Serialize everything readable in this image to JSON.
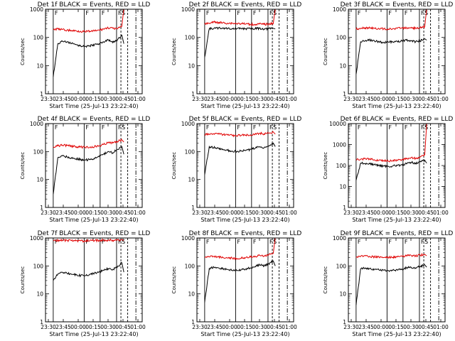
{
  "chart_data": [
    {
      "type": "line",
      "title": "Det 1f BLACK = Events, RED = LLD",
      "xlabel": "Start Time (25-Jul-13 23:22:40)",
      "ylabel": "Counts/sec",
      "xticks": [
        "23:30",
        "23:45",
        "00:00",
        "00:15",
        "00:30",
        "00:45",
        "01:00"
      ],
      "yticks": [
        "1",
        "10",
        "100",
        "1000"
      ],
      "ylim": [
        1,
        1000
      ],
      "yscale": "log",
      "series": [
        {
          "name": "Events",
          "color": "#000000",
          "values": [
            4,
            60,
            72,
            70,
            60,
            55,
            50,
            48,
            50,
            55,
            60,
            70,
            80,
            65,
            80,
            120,
            60
          ]
        },
        {
          "name": "LLD",
          "color": "#e00000",
          "values": [
            190,
            200,
            190,
            180,
            175,
            170,
            165,
            160,
            165,
            170,
            180,
            200,
            220,
            210,
            200,
            250,
            1100
          ]
        }
      ],
      "markers": {
        "solid": [
          "F",
          "F",
          "F",
          "F"
        ],
        "dashdot": [
          "S"
        ]
      }
    },
    {
      "type": "line",
      "title": "Det 2f BLACK = Events, RED = LLD",
      "xlabel": "Start Time (25-Jul-13 23:22:40)",
      "ylabel": "Counts/sec",
      "xticks": [
        "23:30",
        "23:45",
        "00:00",
        "00:15",
        "00:30",
        "00:45",
        "01:00"
      ],
      "yticks": [
        "1",
        "10",
        "100",
        "1000"
      ],
      "ylim": [
        1,
        1000
      ],
      "yscale": "log",
      "series": [
        {
          "name": "Events",
          "color": "#000000",
          "values": [
            20,
            200,
            210,
            215,
            215,
            210,
            205,
            205,
            210,
            205,
            200,
            205,
            210,
            200,
            205,
            210,
            200
          ]
        },
        {
          "name": "LLD",
          "color": "#e00000",
          "values": [
            300,
            320,
            350,
            340,
            330,
            320,
            320,
            310,
            310,
            300,
            290,
            290,
            300,
            290,
            300,
            310,
            1100
          ]
        }
      ],
      "markers": {
        "solid": [
          "F",
          "F",
          "F",
          "F"
        ],
        "dashdot": [
          "S"
        ]
      }
    },
    {
      "type": "line",
      "title": "Det 3f BLACK = Events, RED = LLD",
      "xlabel": "Start Time (25-Jul-13 23:22:40)",
      "ylabel": "Counts/sec",
      "xticks": [
        "23:30",
        "23:45",
        "00:00",
        "00:15",
        "00:30",
        "00:45",
        "01:00"
      ],
      "yticks": [
        "1",
        "10",
        "100",
        "1000"
      ],
      "ylim": [
        1,
        1000
      ],
      "yscale": "log",
      "series": [
        {
          "name": "Events",
          "color": "#000000",
          "values": [
            5,
            70,
            75,
            80,
            75,
            70,
            65,
            68,
            70,
            72,
            75,
            80,
            75,
            70,
            75,
            90,
            80
          ]
        },
        {
          "name": "LLD",
          "color": "#e00000",
          "values": [
            200,
            210,
            220,
            215,
            210,
            205,
            200,
            200,
            205,
            210,
            215,
            220,
            215,
            210,
            220,
            240,
            1100
          ]
        }
      ],
      "markers": {
        "solid": [
          "F",
          "F",
          "F",
          "F"
        ],
        "dashdot": [
          "S"
        ]
      }
    },
    {
      "type": "line",
      "title": "Det 4f BLACK = Events, RED = LLD",
      "xlabel": "Start Time (25-Jul-13 23:22:40)",
      "ylabel": "Counts/sec",
      "xticks": [
        "23:30",
        "23:45",
        "00:00",
        "00:15",
        "00:30",
        "00:45",
        "01:00"
      ],
      "yticks": [
        "1",
        "10",
        "100",
        "1000"
      ],
      "ylim": [
        1,
        1000
      ],
      "yscale": "log",
      "series": [
        {
          "name": "Events",
          "color": "#000000",
          "values": [
            3,
            60,
            70,
            65,
            60,
            55,
            52,
            50,
            52,
            58,
            65,
            80,
            100,
            90,
            120,
            150,
            80
          ]
        },
        {
          "name": "LLD",
          "color": "#e00000",
          "values": [
            150,
            160,
            170,
            165,
            155,
            150,
            145,
            140,
            145,
            150,
            160,
            180,
            210,
            200,
            230,
            260,
            220
          ]
        }
      ],
      "markers": {
        "solid": [
          "F",
          "F",
          "F",
          "F"
        ],
        "dashdot": [
          "S"
        ]
      }
    },
    {
      "type": "line",
      "title": "Det 5f BLACK = Events, RED = LLD",
      "xlabel": "Start Time (25-Jul-13 23:22:40)",
      "ylabel": "Counts/sec",
      "xticks": [
        "23:30",
        "23:45",
        "00:00",
        "00:15",
        "00:30",
        "00:45",
        "01:00"
      ],
      "yticks": [
        "1",
        "10",
        "100",
        "1000"
      ],
      "ylim": [
        1,
        1000
      ],
      "yscale": "log",
      "series": [
        {
          "name": "Events",
          "color": "#000000",
          "values": [
            15,
            150,
            140,
            130,
            120,
            110,
            105,
            100,
            105,
            110,
            120,
            130,
            150,
            140,
            160,
            200,
            150
          ]
        },
        {
          "name": "LLD",
          "color": "#e00000",
          "values": [
            400,
            420,
            430,
            420,
            400,
            390,
            380,
            370,
            380,
            390,
            400,
            420,
            450,
            430,
            460,
            500,
            420
          ]
        }
      ],
      "markers": {
        "solid": [
          "F",
          "F",
          "F",
          "F"
        ],
        "dashdot": [
          "S"
        ]
      }
    },
    {
      "type": "line",
      "title": "Det 6f BLACK = Events, RED = LLD",
      "xlabel": "Start Time (25-Jul-13 23:22:40)",
      "ylabel": "Counts/sec",
      "xticks": [
        "23:30",
        "23:45",
        "00:00",
        "00:15",
        "00:30",
        "00:45",
        "01:00"
      ],
      "yticks": [
        "1",
        "10",
        "100",
        "1000",
        "10000"
      ],
      "ylim": [
        1,
        10000
      ],
      "yscale": "log",
      "series": [
        {
          "name": "Events",
          "color": "#000000",
          "values": [
            20,
            130,
            125,
            120,
            110,
            100,
            95,
            90,
            95,
            100,
            110,
            120,
            140,
            130,
            150,
            180,
            130
          ]
        },
        {
          "name": "LLD",
          "color": "#e00000",
          "values": [
            190,
            200,
            210,
            200,
            190,
            180,
            170,
            165,
            170,
            180,
            190,
            210,
            240,
            220,
            260,
            320,
            10000
          ]
        }
      ],
      "markers": {
        "solid": [
          "F",
          "F",
          "F",
          "F"
        ],
        "dashdot": [
          "S"
        ]
      }
    },
    {
      "type": "line",
      "title": "Det 7f BLACK = Events, RED = LLD",
      "xlabel": "Start Time (25-Jul-13 23:22:40)",
      "ylabel": "Counts/sec",
      "xticks": [
        "23:30",
        "23:45",
        "00:00",
        "00:15",
        "00:30",
        "00:45",
        "01:00"
      ],
      "yticks": [
        "1",
        "10",
        "100",
        "1000"
      ],
      "ylim": [
        1,
        1000
      ],
      "yscale": "log",
      "series": [
        {
          "name": "Events",
          "color": "#000000",
          "values": [
            30,
            50,
            60,
            55,
            50,
            48,
            45,
            45,
            50,
            55,
            60,
            70,
            80,
            75,
            90,
            130,
            60
          ]
        },
        {
          "name": "LLD",
          "color": "#e00000",
          "values": [
            800,
            820,
            830,
            820,
            810,
            800,
            790,
            790,
            800,
            810,
            820,
            830,
            840,
            830,
            850,
            870,
            820
          ]
        }
      ],
      "markers": {
        "solid": [
          "F",
          "F",
          "F",
          "F"
        ],
        "dashdot": [
          "S"
        ]
      }
    },
    {
      "type": "line",
      "title": "Det 8f BLACK = Events, RED = LLD",
      "xlabel": "Start Time (25-Jul-13 23:22:40)",
      "ylabel": "Counts/sec",
      "xticks": [
        "23:30",
        "23:45",
        "00:00",
        "00:15",
        "00:30",
        "00:45",
        "01:00"
      ],
      "yticks": [
        "1",
        "10",
        "100",
        "1000"
      ],
      "ylim": [
        1,
        1000
      ],
      "yscale": "log",
      "series": [
        {
          "name": "Events",
          "color": "#000000",
          "values": [
            5,
            80,
            90,
            85,
            80,
            75,
            70,
            68,
            72,
            78,
            85,
            95,
            110,
            100,
            120,
            150,
            100
          ]
        },
        {
          "name": "LLD",
          "color": "#e00000",
          "values": [
            200,
            210,
            220,
            210,
            200,
            195,
            190,
            185,
            190,
            200,
            210,
            220,
            240,
            230,
            250,
            280,
            1100
          ]
        }
      ],
      "markers": {
        "solid": [
          "F",
          "F",
          "F",
          "F"
        ],
        "dashdot": [
          "S"
        ]
      }
    },
    {
      "type": "line",
      "title": "Det 9f BLACK = Events, RED = LLD",
      "xlabel": "Start Time (25-Jul-13 23:22:40)",
      "ylabel": "Counts/sec",
      "xticks": [
        "23:30",
        "23:45",
        "00:00",
        "00:15",
        "00:30",
        "00:45",
        "01:00"
      ],
      "yticks": [
        "1",
        "10",
        "100",
        "1000"
      ],
      "ylim": [
        1,
        1000
      ],
      "yscale": "log",
      "series": [
        {
          "name": "Events",
          "color": "#000000",
          "values": [
            4,
            80,
            85,
            80,
            75,
            72,
            70,
            68,
            70,
            72,
            78,
            85,
            90,
            85,
            95,
            110,
            90
          ]
        },
        {
          "name": "LLD",
          "color": "#e00000",
          "values": [
            200,
            220,
            230,
            220,
            210,
            205,
            200,
            200,
            205,
            210,
            220,
            230,
            240,
            230,
            245,
            260,
            230
          ]
        }
      ],
      "markers": {
        "solid": [
          "F",
          "F",
          "F",
          "F"
        ],
        "dashdot": [
          "S"
        ]
      }
    }
  ]
}
